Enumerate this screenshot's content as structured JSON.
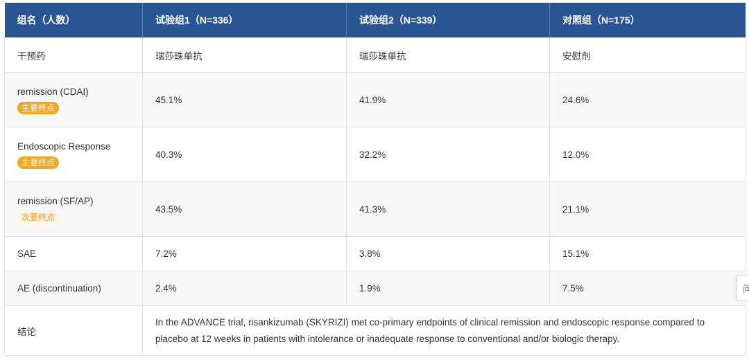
{
  "header": {
    "group": "组名（人数）",
    "trial1": "试验组1（N=336）",
    "trial2": "试验组2（N=339）",
    "control": "对照组（N=175）"
  },
  "rows": [
    {
      "label": "干预药",
      "badge": "",
      "v1": "瑞莎珠单抗",
      "v2": "瑞莎珠单抗",
      "v3": "安慰剂"
    },
    {
      "label": "remission (CDAI)",
      "badge": "主要终点",
      "v1": "45.1%",
      "v2": "41.9%",
      "v3": "24.6%"
    },
    {
      "label": "Endoscopic Response",
      "badge": "主要终点",
      "v1": "40.3%",
      "v2": "32.2%",
      "v3": "12.0%"
    },
    {
      "label": "remission (SF/AP)",
      "badge": "次要终点",
      "v1": "43.5%",
      "v2": "41.3%",
      "v3": "21.1%"
    },
    {
      "label": "SAE",
      "badge": "",
      "v1": "7.2%",
      "v2": "3.8%",
      "v3": "15.1%"
    },
    {
      "label": "AE (discontinuation)",
      "badge": "",
      "v1": "2.4%",
      "v2": "1.9%",
      "v3": "7.5%"
    }
  ],
  "conclusion": {
    "label": "结论",
    "text": "In the ADVANCE trial, risankizumab (SKYRIZI) met co-primary endpoints of clinical remission and endoscopic response compared to placebo at 12 weeks in patients with intolerance or inadequate response to conventional and/or biologic therapy."
  },
  "side_tab": {
    "label": "问"
  },
  "colors": {
    "header_bg": "#295593",
    "primary_badge": "#f5a623",
    "secondary_badge_bg": "#fdf3e0",
    "secondary_badge_text": "#e89b2e",
    "alt_row_bg": "#f7f7f7"
  }
}
